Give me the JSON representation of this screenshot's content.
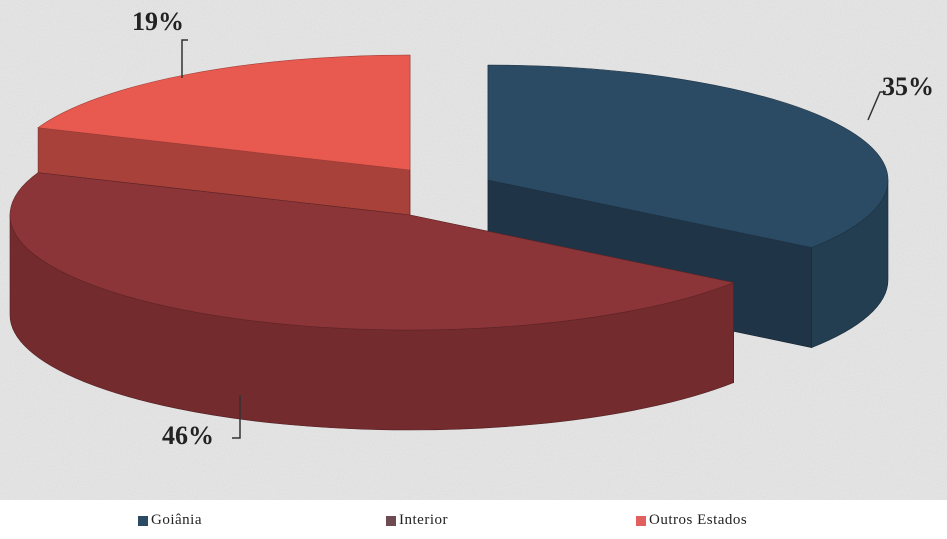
{
  "chart_data": {
    "type": "pie",
    "style": "3d-exploded",
    "labels": [
      "Goiânia",
      "Interior",
      "Outros Estados"
    ],
    "values": [
      35,
      46,
      19
    ],
    "value_labels": [
      "35%",
      "46%",
      "19%"
    ],
    "colors": {
      "Goiânia": "#2b4a63",
      "Interior": "#8c3538",
      "Outros Estados": "#e85a50"
    },
    "legend_position": "bottom",
    "title": ""
  },
  "legend": {
    "items": [
      {
        "label": "Goiânia",
        "color": "#2b4a63"
      },
      {
        "label": "Interior",
        "color": "#6e4a52"
      },
      {
        "label": "Outros Estados",
        "color": "#e06060"
      }
    ]
  }
}
